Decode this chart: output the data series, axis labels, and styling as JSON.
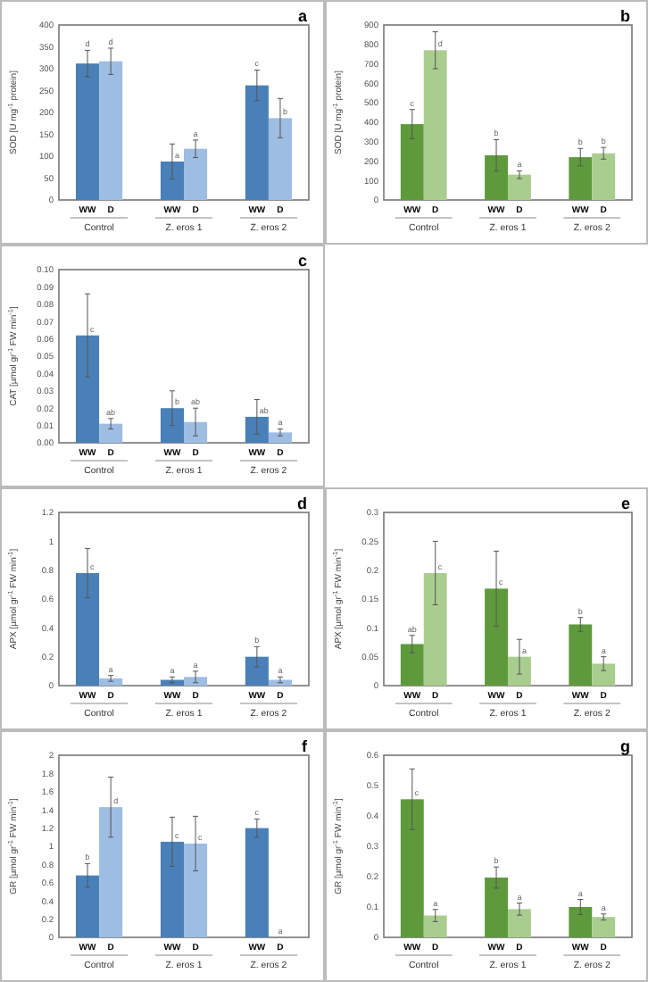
{
  "chart_data": [
    {
      "type": "bar",
      "title": "a",
      "ylabel": "SOD [U mg$^{-1}$ protein]",
      "categories": [
        "Control",
        "Z. eros 1",
        "Z. eros 2"
      ],
      "ylim": [
        0,
        400
      ],
      "yticks": [
        0,
        50,
        100,
        150,
        200,
        250,
        300,
        350,
        400
      ],
      "grid": false,
      "legend": false,
      "series": [
        {
          "name": "WW",
          "color": "#4a80b8",
          "values": [
            312,
            88,
            262
          ],
          "errors": [
            30,
            40,
            35
          ],
          "value_labels": [
            "d",
            "a",
            "c"
          ]
        },
        {
          "name": "D",
          "color": "#9dbde3",
          "values": [
            317,
            117,
            187
          ],
          "errors": [
            30,
            20,
            45
          ],
          "value_labels": [
            "d",
            "a",
            "b"
          ]
        }
      ]
    },
    {
      "type": "bar",
      "title": "b",
      "ylabel": "SOD [U mg$^{-1}$ protein]",
      "categories": [
        "Control",
        "Z. eros 1",
        "Z. eros 2"
      ],
      "ylim": [
        0,
        900
      ],
      "yticks": [
        0,
        100,
        200,
        300,
        400,
        500,
        600,
        700,
        800,
        900
      ],
      "grid": false,
      "legend": false,
      "series": [
        {
          "name": "WW",
          "color": "#5e9a3c",
          "values": [
            390,
            230,
            220
          ],
          "errors": [
            75,
            80,
            45
          ],
          "value_labels": [
            "c",
            "b",
            "b"
          ]
        },
        {
          "name": "D",
          "color": "#a9cd8e",
          "values": [
            770,
            130,
            240
          ],
          "errors": [
            95,
            20,
            30
          ],
          "value_labels": [
            "d",
            "a",
            "b"
          ]
        }
      ]
    },
    {
      "type": "bar",
      "title": "c",
      "ylabel": "CAT [µmol gr$^{-1}$ FW min$^{-1}$]",
      "categories": [
        "Control",
        "Z. eros 1",
        "Z. eros 2"
      ],
      "ylim": [
        0,
        0.1
      ],
      "yticks": [
        {
          "value": 0,
          "label": "0.00"
        },
        {
          "value": 0.01,
          "label": "0.01"
        },
        {
          "value": 0.02,
          "label": "0.02"
        },
        {
          "value": 0.03,
          "label": "0.03"
        },
        {
          "value": 0.04,
          "label": "0.04"
        },
        {
          "value": 0.05,
          "label": "0.05"
        },
        {
          "value": 0.06,
          "label": "0.06"
        },
        {
          "value": 0.07,
          "label": "0.07"
        },
        {
          "value": 0.08,
          "label": "0.08"
        },
        {
          "value": 0.09,
          "label": "0.09"
        },
        {
          "value": 0.1,
          "label": "0.10"
        }
      ],
      "grid": false,
      "legend": false,
      "series": [
        {
          "name": "WW",
          "color": "#4a80b8",
          "values": [
            0.062,
            0.02,
            0.015
          ],
          "errors": [
            0.024,
            0.01,
            0.01
          ],
          "value_labels": [
            "c",
            "b",
            "ab"
          ]
        },
        {
          "name": "D",
          "color": "#9dbde3",
          "values": [
            0.011,
            0.012,
            0.006
          ],
          "errors": [
            0.003,
            0.008,
            0.002
          ],
          "value_labels": [
            "ab",
            "ab",
            "a"
          ]
        }
      ]
    },
    {
      "type": "bar",
      "title": "d",
      "ylabel": "APX [µmol gr$^{-1}$ FW min$^{-1}$]",
      "categories": [
        "Control",
        "Z. eros 1",
        "Z. eros 2"
      ],
      "ylim": [
        0,
        1.2
      ],
      "yticks": [
        0,
        0.2,
        0.4,
        0.6,
        0.8,
        1,
        1.2
      ],
      "grid": false,
      "legend": false,
      "series": [
        {
          "name": "WW",
          "color": "#4a80b8",
          "values": [
            0.78,
            0.04,
            0.2
          ],
          "errors": [
            0.17,
            0.02,
            0.07
          ],
          "value_labels": [
            "c",
            "a",
            "b"
          ]
        },
        {
          "name": "D",
          "color": "#9dbde3",
          "values": [
            0.05,
            0.06,
            0.04
          ],
          "errors": [
            0.02,
            0.04,
            0.02
          ],
          "value_labels": [
            "a",
            "a",
            "a"
          ]
        }
      ]
    },
    {
      "type": "bar",
      "title": "e",
      "ylabel": "APX [µmol gr$^{-1}$ FW min$^{-1}$]",
      "categories": [
        "Control",
        "Z. eros 1",
        "Z. eros 2"
      ],
      "ylim": [
        0,
        0.3
      ],
      "yticks": [
        0,
        0.05,
        0.1,
        0.15,
        0.2,
        0.25,
        0.3
      ],
      "grid": false,
      "legend": false,
      "series": [
        {
          "name": "WW",
          "color": "#5e9a3c",
          "values": [
            0.072,
            0.168,
            0.106
          ],
          "errors": [
            0.015,
            0.065,
            0.012
          ],
          "value_labels": [
            "ab",
            "c",
            "b"
          ]
        },
        {
          "name": "D",
          "color": "#a9cd8e",
          "values": [
            0.195,
            0.05,
            0.038
          ],
          "errors": [
            0.055,
            0.03,
            0.012
          ],
          "value_labels": [
            "c",
            "a",
            "a"
          ]
        }
      ]
    },
    {
      "type": "bar",
      "title": "f",
      "ylabel": "GR [µmol gr$^{-1}$ FW min$^{-1}$]",
      "categories": [
        "Control",
        "Z. eros 1",
        "Z. eros 2"
      ],
      "ylim": [
        0,
        2
      ],
      "yticks": [
        0,
        0.2,
        0.4,
        0.6,
        0.8,
        1,
        1.2,
        1.4,
        1.6,
        1.8,
        2
      ],
      "grid": false,
      "legend": false,
      "series": [
        {
          "name": "WW",
          "color": "#4a80b8",
          "values": [
            0.68,
            1.05,
            1.2
          ],
          "errors": [
            0.13,
            0.27,
            0.1
          ],
          "value_labels": [
            "b",
            "c",
            "c"
          ]
        },
        {
          "name": "D",
          "color": "#9dbde3",
          "values": [
            1.43,
            1.03,
            0
          ],
          "errors": [
            0.33,
            0.3,
            null
          ],
          "value_labels": [
            "d",
            "c",
            null
          ]
        }
      ],
      "annotations": [
        {
          "text": "a",
          "x": "Z. eros 2",
          "y": 0
        }
      ]
    },
    {
      "type": "bar",
      "title": "g",
      "ylabel": "GR [µmol gr$^{-1}$ FW min$^{-1}$]",
      "categories": [
        "Control",
        "Z. eros 1",
        "Z. eros 2"
      ],
      "ylim": [
        0,
        0.6
      ],
      "yticks": [
        0,
        0.1,
        0.2,
        0.3,
        0.4,
        0.5,
        0.6
      ],
      "grid": false,
      "legend": false,
      "series": [
        {
          "name": "WW",
          "color": "#5e9a3c",
          "values": [
            0.455,
            0.197,
            0.1
          ],
          "errors": [
            0.1,
            0.035,
            0.025
          ],
          "value_labels": [
            "c",
            "b",
            "a"
          ]
        },
        {
          "name": "D",
          "color": "#a9cd8e",
          "values": [
            0.072,
            0.093,
            0.067
          ],
          "errors": [
            0.02,
            0.02,
            0.01
          ],
          "value_labels": [
            "a",
            "a",
            "a"
          ]
        }
      ]
    }
  ]
}
